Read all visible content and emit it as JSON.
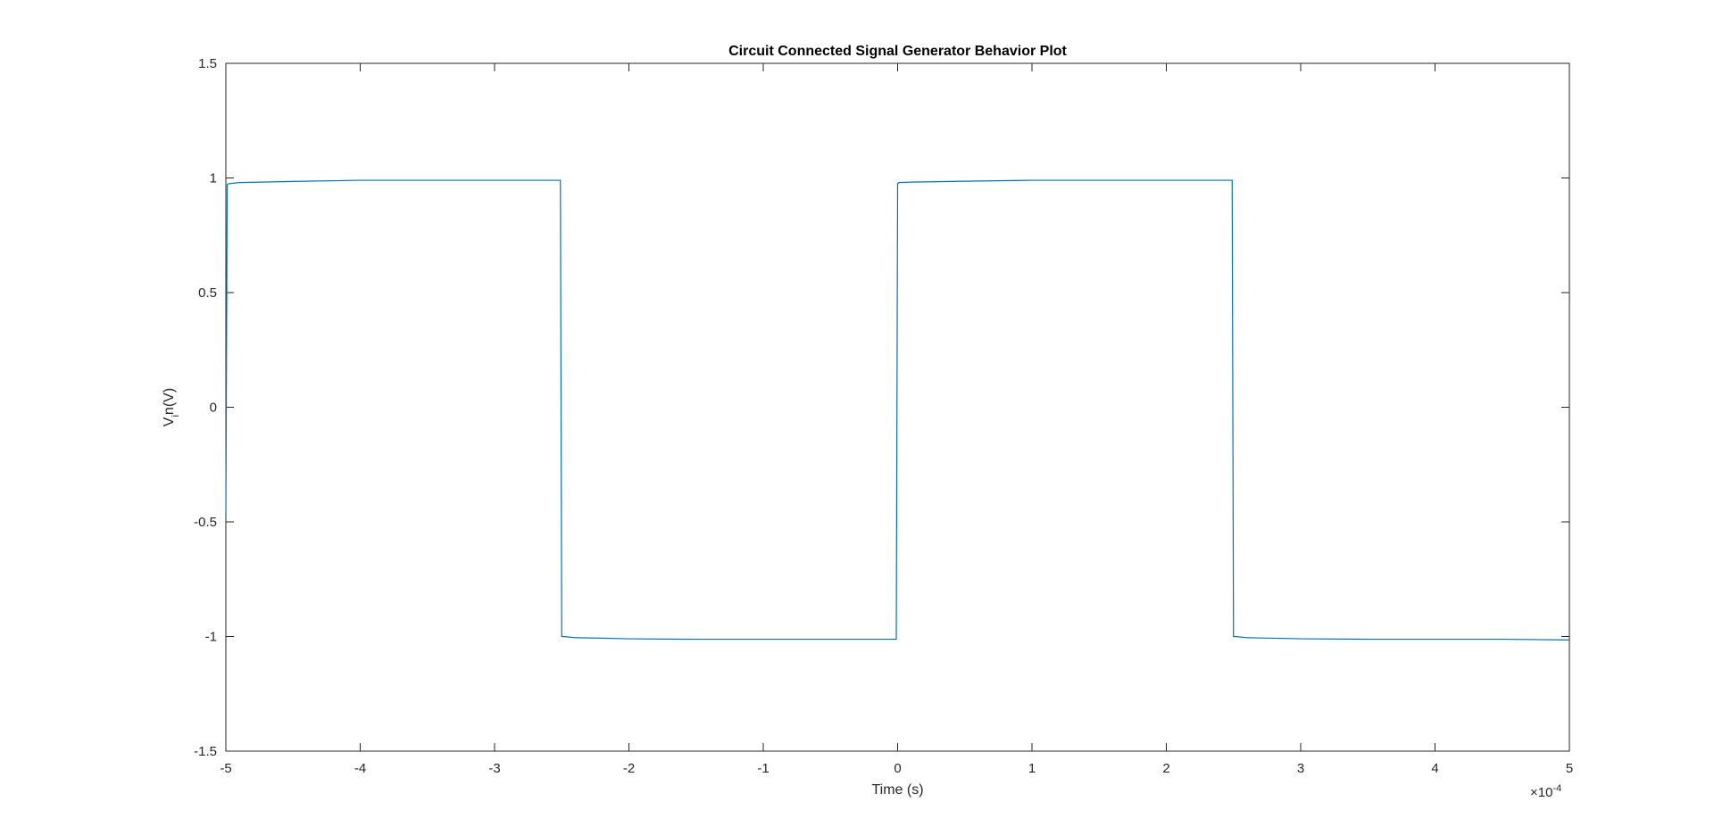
{
  "chart_data": {
    "type": "line",
    "title": "Circuit Connected Signal Generator Behavior Plot",
    "xlabel": "Time (s)",
    "ylabel": {
      "main": "V",
      "subscript": "i",
      "rest": "n(V)"
    },
    "x_multiplier": {
      "base": "×10",
      "exponent": "-4"
    },
    "xlim": [
      -5,
      5
    ],
    "ylim": [
      -1.5,
      1.5
    ],
    "x_ticks": [
      -5,
      -4,
      -3,
      -2,
      -1,
      0,
      1,
      2,
      3,
      4,
      5
    ],
    "y_ticks": [
      -1.5,
      -1,
      -0.5,
      0,
      0.5,
      1,
      1.5
    ],
    "x_tick_labels": [
      "-5",
      "-4",
      "-3",
      "-2",
      "-1",
      "0",
      "1",
      "2",
      "3",
      "4",
      "5"
    ],
    "y_tick_labels": [
      "-1.5",
      "-1",
      "-0.5",
      "0",
      "0.5",
      "1",
      "1.5"
    ],
    "grid": false,
    "series": [
      {
        "color": "#0072BD",
        "x": [
          -5,
          -4.99,
          -4.98,
          -4.9,
          -4.5,
          -4.0,
          -3.5,
          -3.0,
          -2.6,
          -2.51,
          -2.5,
          -2.49,
          -2.4,
          -2.0,
          -1.5,
          -1.0,
          -0.5,
          -0.01,
          0,
          0.01,
          0.1,
          0.5,
          1.0,
          1.5,
          2.0,
          2.49,
          2.5,
          2.51,
          2.6,
          3.0,
          3.5,
          4.0,
          4.5,
          5.0
        ],
        "y": [
          -0.47,
          0.97,
          0.975,
          0.98,
          0.985,
          0.99,
          0.99,
          0.99,
          0.99,
          0.99,
          -1.0,
          -1.0,
          -1.005,
          -1.01,
          -1.012,
          -1.012,
          -1.012,
          -1.012,
          0.975,
          0.98,
          0.982,
          0.986,
          0.99,
          0.99,
          0.99,
          0.99,
          -1.0,
          -1.0,
          -1.005,
          -1.01,
          -1.012,
          -1.012,
          -1.012,
          -1.015
        ]
      }
    ]
  },
  "style": {
    "line_color": "#0072BD",
    "axes_color": "#262626",
    "background": "#ffffff"
  }
}
